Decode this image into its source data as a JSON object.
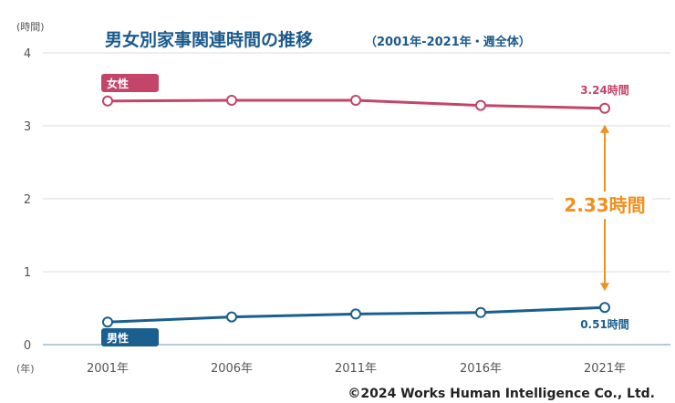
{
  "chart_data": {
    "type": "line",
    "title": "男女別家事関連時間の推移",
    "subtitle": "（2001年-2021年・週全体）",
    "y_unit": "(時間)",
    "x_unit": "(年)",
    "categories": [
      "2001年",
      "2006年",
      "2011年",
      "2016年",
      "2021年"
    ],
    "ylim": [
      0,
      4
    ],
    "yticks": [
      0,
      1,
      2,
      3,
      4
    ],
    "grid": true,
    "series": [
      {
        "name": "女性",
        "values": [
          3.34,
          3.35,
          3.35,
          3.28,
          3.24
        ],
        "color": "#c4456a",
        "end_label": "3.24時間"
      },
      {
        "name": "男性",
        "values": [
          0.31,
          0.38,
          0.42,
          0.44,
          0.51
        ],
        "color": "#1a5f8e",
        "end_label": "0.51時間"
      }
    ],
    "annotation": {
      "text": "2.33時間",
      "color": "#f0901e",
      "from_value": 3.24,
      "to_value": 0.51,
      "category": "2021年"
    }
  },
  "copyright": "©2024 Works Human Intelligence Co., Ltd."
}
